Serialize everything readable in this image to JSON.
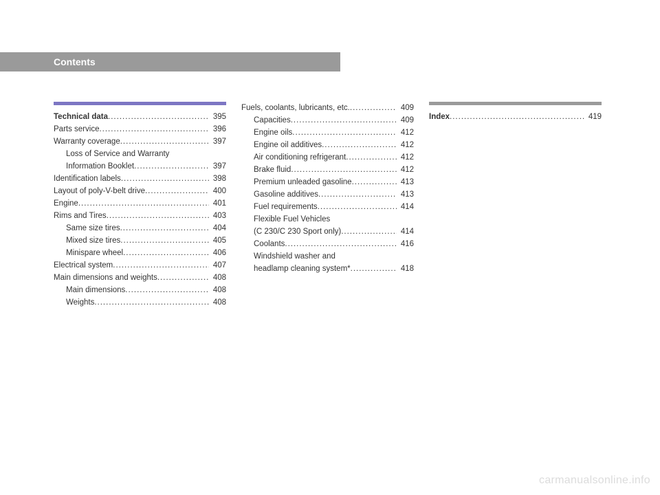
{
  "header": {
    "title": "Contents"
  },
  "columns": [
    {
      "line_color": "purple",
      "entries": [
        {
          "label": "Technical data",
          "page": "395",
          "bold": true,
          "indent": false,
          "dotted": true
        },
        {
          "label": "Parts service",
          "page": "396",
          "bold": false,
          "indent": false,
          "dotted": true
        },
        {
          "label": "Warranty coverage",
          "page": "397",
          "bold": false,
          "indent": false,
          "dotted": true
        },
        {
          "label": "Loss of Service and Warranty",
          "page": "",
          "bold": false,
          "indent": true,
          "dotted": false
        },
        {
          "label": "Information Booklet",
          "page": "397",
          "bold": false,
          "indent": true,
          "dotted": true
        },
        {
          "label": "Identification labels",
          "page": "398",
          "bold": false,
          "indent": false,
          "dotted": true
        },
        {
          "label": "Layout of poly-V-belt drive",
          "page": "400",
          "bold": false,
          "indent": false,
          "dotted": true
        },
        {
          "label": "Engine",
          "page": "401",
          "bold": false,
          "indent": false,
          "dotted": true
        },
        {
          "label": "Rims and Tires",
          "page": "403",
          "bold": false,
          "indent": false,
          "dotted": true
        },
        {
          "label": "Same size tires",
          "page": "404",
          "bold": false,
          "indent": true,
          "dotted": true
        },
        {
          "label": "Mixed size tires",
          "page": "405",
          "bold": false,
          "indent": true,
          "dotted": true
        },
        {
          "label": "Minispare wheel",
          "page": "406",
          "bold": false,
          "indent": true,
          "dotted": true
        },
        {
          "label": "Electrical system",
          "page": "407",
          "bold": false,
          "indent": false,
          "dotted": true
        },
        {
          "label": "Main dimensions and weights",
          "page": "408",
          "bold": false,
          "indent": false,
          "dotted": true
        },
        {
          "label": "Main dimensions",
          "page": "408",
          "bold": false,
          "indent": true,
          "dotted": true
        },
        {
          "label": "Weights",
          "page": "408",
          "bold": false,
          "indent": true,
          "dotted": true
        }
      ]
    },
    {
      "line_color": "none",
      "entries": [
        {
          "label": "Fuels, coolants, lubricants, etc.",
          "page": "409",
          "bold": false,
          "indent": false,
          "dotted": true
        },
        {
          "label": "Capacities",
          "page": "409",
          "bold": false,
          "indent": true,
          "dotted": true
        },
        {
          "label": "Engine oils",
          "page": "412",
          "bold": false,
          "indent": true,
          "dotted": true
        },
        {
          "label": "Engine oil additives",
          "page": "412",
          "bold": false,
          "indent": true,
          "dotted": true
        },
        {
          "label": "Air conditioning refrigerant",
          "page": "412",
          "bold": false,
          "indent": true,
          "dotted": true
        },
        {
          "label": "Brake fluid",
          "page": "412",
          "bold": false,
          "indent": true,
          "dotted": true
        },
        {
          "label": "Premium unleaded gasoline",
          "page": "413",
          "bold": false,
          "indent": true,
          "dotted": true
        },
        {
          "label": "Gasoline additives",
          "page": "413",
          "bold": false,
          "indent": true,
          "dotted": true
        },
        {
          "label": "Fuel requirements",
          "page": "414",
          "bold": false,
          "indent": true,
          "dotted": true
        },
        {
          "label": "Flexible Fuel Vehicles",
          "page": "",
          "bold": false,
          "indent": true,
          "dotted": false
        },
        {
          "label": "(C 230/C 230 Sport only)",
          "page": "414",
          "bold": false,
          "indent": true,
          "dotted": true
        },
        {
          "label": "Coolants",
          "page": "416",
          "bold": false,
          "indent": true,
          "dotted": true
        },
        {
          "label": "Windshield washer and",
          "page": "",
          "bold": false,
          "indent": true,
          "dotted": false
        },
        {
          "label": "headlamp cleaning system*",
          "page": "418",
          "bold": false,
          "indent": true,
          "dotted": true
        }
      ]
    },
    {
      "line_color": "grey",
      "entries": [
        {
          "label": "Index",
          "page": "419",
          "bold": true,
          "indent": false,
          "dotted": true
        }
      ]
    }
  ],
  "watermark": "carmanualsonline.info"
}
